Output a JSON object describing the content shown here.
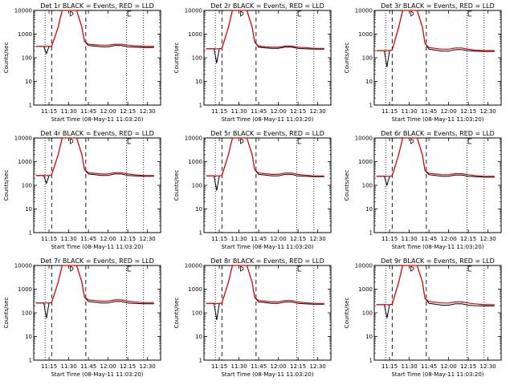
{
  "colors": {
    "events": "#000000",
    "lld": "#e00000",
    "axis": "#000000"
  },
  "chart_data": [
    {
      "type": "line",
      "title": "Det 1r BLACK = Events, RED = LLD",
      "xlabel": "Start Time (08-May-11 11:03:20)",
      "ylabel": "Counts/sec",
      "x_ticks": [
        "11:15",
        "11:30",
        "11:45",
        "12:00",
        "12:15",
        "12:30"
      ],
      "y_ticks": [
        "1",
        "10",
        "100",
        "1000",
        "10000"
      ],
      "y_scale": "log",
      "ylim": [
        1,
        10000
      ],
      "xlim": [
        "11:03:20",
        "12:40"
      ],
      "marker_D": "11:33",
      "marker_E": "12:15",
      "dotted_lines": [
        "11:12",
        "12:14",
        "12:27"
      ],
      "dashed_lines": [
        "11:17",
        "11:43"
      ],
      "x": [
        "11:05",
        "11:11",
        "11:13",
        "11:15",
        "11:17",
        "11:22",
        "11:25",
        "11:27",
        "11:31",
        "11:36",
        "11:40",
        "11:42",
        "11:45",
        "11:50",
        "11:55",
        "12:00",
        "12:05",
        "12:10",
        "12:15",
        "12:20",
        "12:27",
        "12:35"
      ],
      "series": [
        {
          "name": "Events",
          "values": [
            300,
            300,
            150,
            300,
            300,
            2000,
            12000,
            12000,
            12000,
            12000,
            2000,
            500,
            330,
            310,
            290,
            290,
            330,
            330,
            290,
            280,
            270,
            270
          ]
        },
        {
          "name": "LLD",
          "values": [
            300,
            300,
            300,
            300,
            300,
            2000,
            12000,
            12000,
            12000,
            12000,
            2000,
            500,
            370,
            350,
            340,
            340,
            370,
            370,
            340,
            320,
            300,
            300
          ]
        }
      ]
    },
    {
      "type": "line",
      "title": "Det 2r BLACK = Events, RED = LLD",
      "xlabel": "Start Time (08-May-11 11:03:20)",
      "ylabel": "Counts/sec",
      "x_ticks": [
        "11:15",
        "11:30",
        "11:45",
        "12:00",
        "12:15",
        "12:30"
      ],
      "y_ticks": [
        "1",
        "10",
        "100",
        "1000",
        "10000"
      ],
      "y_scale": "log",
      "ylim": [
        1,
        10000
      ],
      "xlim": [
        "11:03:20",
        "12:40"
      ],
      "marker_D": "11:33",
      "marker_E": "12:15",
      "dotted_lines": [
        "11:12",
        "12:14",
        "12:27"
      ],
      "dashed_lines": [
        "11:17",
        "11:43"
      ],
      "x": [
        "11:05",
        "11:11",
        "11:13",
        "11:15",
        "11:17",
        "11:22",
        "11:25",
        "11:27",
        "11:31",
        "11:36",
        "11:40",
        "11:42",
        "11:45",
        "11:50",
        "11:55",
        "12:00",
        "12:05",
        "12:10",
        "12:15",
        "12:20",
        "12:27",
        "12:35"
      ],
      "series": [
        {
          "name": "Events",
          "values": [
            240,
            240,
            60,
            240,
            250,
            2000,
            12000,
            12000,
            12000,
            12000,
            2000,
            450,
            280,
            260,
            250,
            250,
            280,
            280,
            250,
            240,
            230,
            230
          ]
        },
        {
          "name": "LLD",
          "values": [
            240,
            240,
            240,
            240,
            250,
            2000,
            12000,
            12000,
            12000,
            12000,
            2000,
            450,
            310,
            290,
            280,
            280,
            310,
            310,
            280,
            270,
            250,
            250
          ]
        }
      ]
    },
    {
      "type": "line",
      "title": "Det 3r BLACK = Events, RED = LLD",
      "xlabel": "Start Time (08-May-11 11:03:20)",
      "ylabel": "Counts/sec",
      "x_ticks": [
        "11:15",
        "11:30",
        "11:45",
        "12:00",
        "12:15",
        "12:30"
      ],
      "y_ticks": [
        "1",
        "10",
        "100",
        "1000",
        "10000"
      ],
      "y_scale": "log",
      "ylim": [
        1,
        10000
      ],
      "xlim": [
        "11:03:20",
        "12:40"
      ],
      "marker_D": "11:33",
      "marker_E": "12:15",
      "dotted_lines": [
        "11:12",
        "12:14",
        "12:27"
      ],
      "dashed_lines": [
        "11:17",
        "11:43"
      ],
      "x": [
        "11:05",
        "11:11",
        "11:13",
        "11:15",
        "11:17",
        "11:22",
        "11:25",
        "11:27",
        "11:31",
        "11:36",
        "11:40",
        "11:42",
        "11:45",
        "11:50",
        "11:55",
        "12:00",
        "12:05",
        "12:10",
        "12:15",
        "12:20",
        "12:27",
        "12:35"
      ],
      "series": [
        {
          "name": "Events",
          "values": [
            200,
            200,
            40,
            200,
            210,
            2000,
            12000,
            12000,
            12000,
            12000,
            2000,
            400,
            230,
            210,
            190,
            190,
            220,
            220,
            200,
            190,
            185,
            185
          ]
        },
        {
          "name": "LLD",
          "values": [
            200,
            200,
            200,
            200,
            210,
            2000,
            12000,
            12000,
            12000,
            12000,
            2000,
            400,
            270,
            250,
            230,
            230,
            260,
            260,
            230,
            210,
            200,
            200
          ]
        }
      ]
    },
    {
      "type": "line",
      "title": "Det 4r BLACK = Events, RED = LLD",
      "xlabel": "Start Time (08-May-11 11:03:20)",
      "ylabel": "Counts/sec",
      "x_ticks": [
        "11:15",
        "11:30",
        "11:45",
        "12:00",
        "12:15",
        "12:30"
      ],
      "y_ticks": [
        "1",
        "10",
        "100",
        "1000",
        "10000"
      ],
      "y_scale": "log",
      "ylim": [
        1,
        10000
      ],
      "xlim": [
        "11:03:20",
        "12:40"
      ],
      "marker_D": "11:33",
      "marker_E": "12:15",
      "dotted_lines": [
        "11:12",
        "12:14",
        "12:27"
      ],
      "dashed_lines": [
        "11:17",
        "11:43"
      ],
      "x": [
        "11:05",
        "11:11",
        "11:13",
        "11:15",
        "11:17",
        "11:22",
        "11:25",
        "11:27",
        "11:31",
        "11:36",
        "11:40",
        "11:42",
        "11:45",
        "11:50",
        "11:55",
        "12:00",
        "12:05",
        "12:10",
        "12:15",
        "12:20",
        "12:27",
        "12:35"
      ],
      "series": [
        {
          "name": "Events",
          "values": [
            260,
            260,
            120,
            260,
            280,
            2000,
            12000,
            12000,
            12000,
            12000,
            2000,
            450,
            300,
            280,
            260,
            260,
            300,
            300,
            260,
            250,
            240,
            240
          ]
        },
        {
          "name": "LLD",
          "values": [
            260,
            260,
            260,
            260,
            280,
            2000,
            12000,
            12000,
            12000,
            12000,
            2000,
            450,
            340,
            320,
            300,
            300,
            340,
            340,
            300,
            280,
            260,
            260
          ]
        }
      ]
    },
    {
      "type": "line",
      "title": "Det 5r BLACK = Events, RED = LLD",
      "xlabel": "Start Time (08-May-11 11:03:20)",
      "ylabel": "Counts/sec",
      "x_ticks": [
        "11:15",
        "11:30",
        "11:45",
        "12:00",
        "12:15",
        "12:30"
      ],
      "y_ticks": [
        "1",
        "10",
        "100",
        "1000",
        "10000"
      ],
      "y_scale": "log",
      "ylim": [
        1,
        10000
      ],
      "xlim": [
        "11:03:20",
        "12:40"
      ],
      "marker_D": "11:33",
      "marker_E": "12:15",
      "dotted_lines": [
        "11:12",
        "12:14",
        "12:27"
      ],
      "dashed_lines": [
        "11:17",
        "11:43"
      ],
      "x": [
        "11:05",
        "11:11",
        "11:13",
        "11:15",
        "11:17",
        "11:22",
        "11:25",
        "11:27",
        "11:31",
        "11:36",
        "11:40",
        "11:42",
        "11:45",
        "11:50",
        "11:55",
        "12:00",
        "12:05",
        "12:10",
        "12:15",
        "12:20",
        "12:27",
        "12:35"
      ],
      "series": [
        {
          "name": "Events",
          "values": [
            250,
            250,
            60,
            250,
            260,
            2000,
            12000,
            12000,
            12000,
            12000,
            2000,
            450,
            290,
            270,
            250,
            250,
            290,
            290,
            250,
            240,
            230,
            230
          ]
        },
        {
          "name": "LLD",
          "values": [
            250,
            250,
            250,
            250,
            260,
            2000,
            12000,
            12000,
            12000,
            12000,
            2000,
            450,
            330,
            310,
            290,
            290,
            330,
            330,
            290,
            270,
            250,
            250
          ]
        }
      ]
    },
    {
      "type": "line",
      "title": "Det 6r BLACK = Events, RED = LLD",
      "xlabel": "Start Time (08-May-11 11:03:20)",
      "ylabel": "Counts/sec",
      "x_ticks": [
        "11:15",
        "11:30",
        "11:45",
        "12:00",
        "12:15",
        "12:30"
      ],
      "y_ticks": [
        "1",
        "10",
        "100",
        "1000",
        "10000"
      ],
      "y_scale": "log",
      "ylim": [
        1,
        10000
      ],
      "xlim": [
        "11:03:20",
        "12:40"
      ],
      "marker_D": "11:33",
      "marker_E": "12:15",
      "dotted_lines": [
        "11:12",
        "12:14",
        "12:27"
      ],
      "dashed_lines": [
        "11:17",
        "11:43"
      ],
      "x": [
        "11:05",
        "11:11",
        "11:13",
        "11:15",
        "11:17",
        "11:22",
        "11:25",
        "11:27",
        "11:31",
        "11:36",
        "11:40",
        "11:42",
        "11:45",
        "11:50",
        "11:55",
        "12:00",
        "12:05",
        "12:10",
        "12:15",
        "12:20",
        "12:27",
        "12:35"
      ],
      "series": [
        {
          "name": "Events",
          "values": [
            240,
            240,
            100,
            240,
            250,
            2000,
            12000,
            12000,
            12000,
            12000,
            2000,
            420,
            280,
            260,
            240,
            240,
            270,
            270,
            240,
            230,
            220,
            220
          ]
        },
        {
          "name": "LLD",
          "values": [
            240,
            240,
            240,
            240,
            250,
            2000,
            12000,
            12000,
            12000,
            12000,
            2000,
            420,
            320,
            300,
            280,
            280,
            310,
            310,
            280,
            260,
            240,
            240
          ]
        }
      ]
    },
    {
      "type": "line",
      "title": "Det 7r BLACK = Events, RED = LLD",
      "xlabel": "Start Time (08-May-11 11:03:20)",
      "ylabel": "Counts/sec",
      "x_ticks": [
        "11:15",
        "11:30",
        "11:45",
        "12:00",
        "12:15",
        "12:30"
      ],
      "y_ticks": [
        "1",
        "10",
        "100",
        "1000",
        "10000"
      ],
      "y_scale": "log",
      "ylim": [
        1,
        10000
      ],
      "xlim": [
        "11:03:20",
        "12:40"
      ],
      "marker_D": "11:33",
      "marker_E": "12:15",
      "dotted_lines": [
        "11:12",
        "12:14",
        "12:27"
      ],
      "dashed_lines": [
        "11:17",
        "11:43"
      ],
      "x": [
        "11:05",
        "11:11",
        "11:13",
        "11:15",
        "11:17",
        "11:22",
        "11:25",
        "11:27",
        "11:31",
        "11:36",
        "11:40",
        "11:42",
        "11:45",
        "11:50",
        "11:55",
        "12:00",
        "12:05",
        "12:10",
        "12:15",
        "12:20",
        "12:27",
        "12:35"
      ],
      "series": [
        {
          "name": "Events",
          "values": [
            260,
            260,
            60,
            260,
            270,
            2000,
            12000,
            12000,
            12000,
            12000,
            2000,
            460,
            300,
            280,
            260,
            260,
            300,
            300,
            260,
            250,
            240,
            240
          ]
        },
        {
          "name": "LLD",
          "values": [
            260,
            260,
            260,
            260,
            270,
            2000,
            12000,
            12000,
            12000,
            12000,
            2000,
            460,
            350,
            330,
            310,
            310,
            350,
            350,
            310,
            290,
            270,
            270
          ]
        }
      ]
    },
    {
      "type": "line",
      "title": "Det 8r BLACK = Events, RED = LLD",
      "xlabel": "Start Time (08-May-11 11:03:20)",
      "ylabel": "Counts/sec",
      "x_ticks": [
        "11:15",
        "11:30",
        "11:45",
        "12:00",
        "12:15",
        "12:30"
      ],
      "y_ticks": [
        "1",
        "10",
        "100",
        "1000",
        "10000"
      ],
      "y_scale": "log",
      "ylim": [
        1,
        10000
      ],
      "xlim": [
        "11:03:20",
        "12:40"
      ],
      "marker_D": "11:33",
      "marker_E": "12:15",
      "dotted_lines": [
        "11:12",
        "12:14",
        "12:27"
      ],
      "dashed_lines": [
        "11:17",
        "11:43"
      ],
      "x": [
        "11:05",
        "11:11",
        "11:13",
        "11:15",
        "11:17",
        "11:22",
        "11:25",
        "11:27",
        "11:31",
        "11:36",
        "11:40",
        "11:42",
        "11:45",
        "11:50",
        "11:55",
        "12:00",
        "12:05",
        "12:10",
        "12:15",
        "12:20",
        "12:27",
        "12:35"
      ],
      "series": [
        {
          "name": "Events",
          "values": [
            250,
            250,
            50,
            250,
            260,
            2000,
            12000,
            12000,
            12000,
            12000,
            2000,
            440,
            290,
            270,
            250,
            250,
            290,
            290,
            250,
            240,
            230,
            230
          ]
        },
        {
          "name": "LLD",
          "values": [
            250,
            250,
            250,
            250,
            260,
            2000,
            12000,
            12000,
            12000,
            12000,
            2000,
            440,
            330,
            310,
            290,
            290,
            330,
            330,
            290,
            270,
            250,
            250
          ]
        }
      ]
    },
    {
      "type": "line",
      "title": "Det 9r BLACK = Events, RED = LLD",
      "xlabel": "Start Time (08-May-11 11:03:20)",
      "ylabel": "Counts/sec",
      "x_ticks": [
        "11:15",
        "11:30",
        "11:45",
        "12:00",
        "12:15",
        "12:30"
      ],
      "y_ticks": [
        "1",
        "10",
        "100",
        "1000",
        "10000"
      ],
      "y_scale": "log",
      "ylim": [
        1,
        10000
      ],
      "xlim": [
        "11:03:20",
        "12:40"
      ],
      "marker_D": "11:33",
      "marker_E": "12:15",
      "dotted_lines": [
        "11:12",
        "12:14",
        "12:27"
      ],
      "dashed_lines": [
        "11:17",
        "11:43"
      ],
      "x": [
        "11:05",
        "11:11",
        "11:13",
        "11:15",
        "11:17",
        "11:22",
        "11:25",
        "11:27",
        "11:31",
        "11:36",
        "11:40",
        "11:42",
        "11:45",
        "11:50",
        "11:55",
        "12:00",
        "12:05",
        "12:10",
        "12:15",
        "12:20",
        "12:27",
        "12:35"
      ],
      "series": [
        {
          "name": "Events",
          "values": [
            220,
            220,
            60,
            220,
            230,
            2000,
            12000,
            12000,
            12000,
            12000,
            2000,
            400,
            250,
            230,
            210,
            210,
            240,
            240,
            210,
            200,
            195,
            195
          ]
        },
        {
          "name": "LLD",
          "values": [
            220,
            220,
            220,
            220,
            230,
            2000,
            12000,
            12000,
            12000,
            12000,
            2000,
            400,
            300,
            280,
            260,
            260,
            290,
            290,
            260,
            240,
            220,
            220
          ]
        }
      ]
    }
  ]
}
